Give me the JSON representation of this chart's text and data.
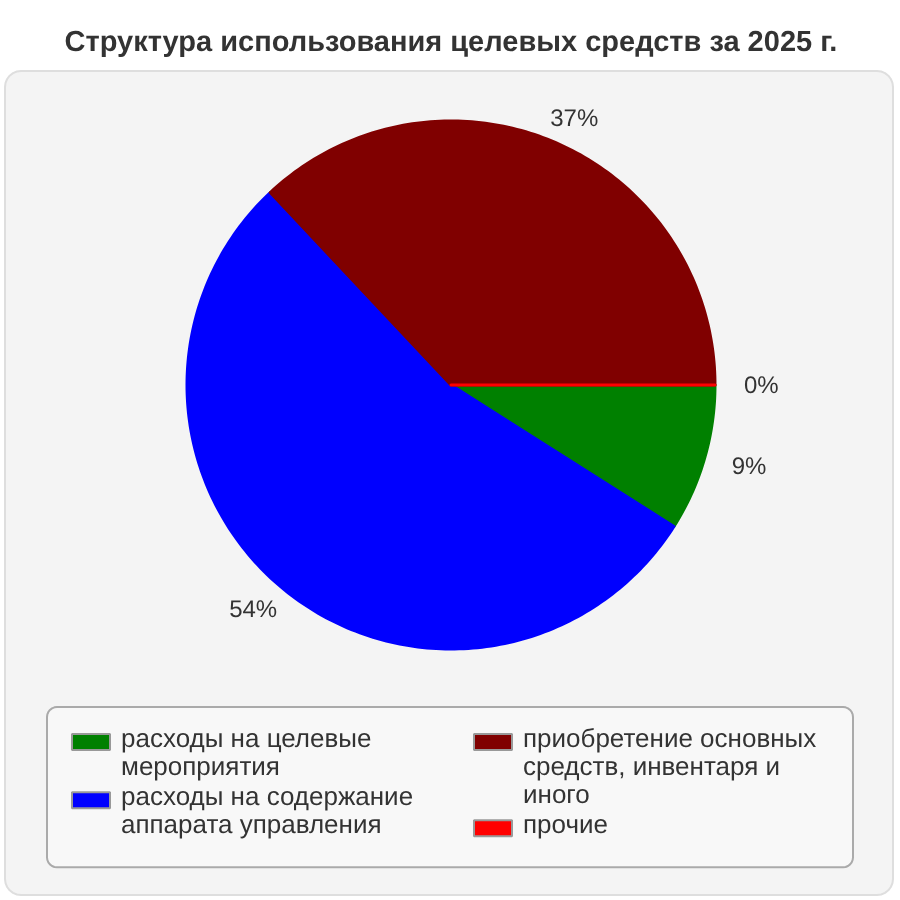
{
  "chart_data": {
    "type": "pie",
    "title": "Структура использования целевых средств за 2025 г.",
    "categories": [
      "расходы на целевые мероприятия",
      "расходы на содержание аппарата управления",
      "приобретение основных средств, инвентаря и иного",
      "прочие"
    ],
    "values": [
      9,
      54,
      37,
      0
    ],
    "colors": [
      "#008000",
      "#0000ff",
      "#800000",
      "#ff0000"
    ],
    "value_labels": [
      "9%",
      "54%",
      "37%",
      "0%"
    ],
    "legend": "bottom"
  }
}
